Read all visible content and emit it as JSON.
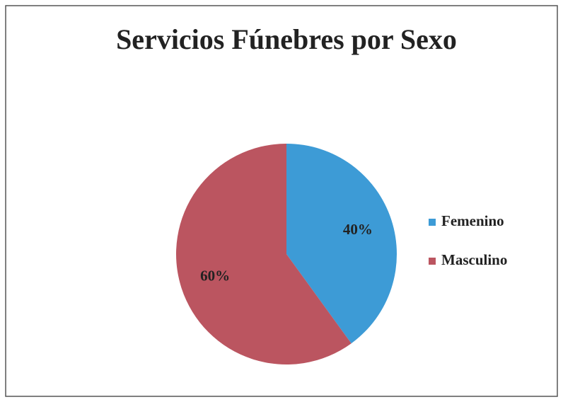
{
  "chart_data": {
    "type": "pie",
    "title": "Servicios Fúnebres por Sexo",
    "categories": [
      "Femenino",
      "Masculino"
    ],
    "values": [
      40,
      60
    ],
    "value_labels": [
      "40%",
      "60%"
    ],
    "colors": [
      "#3d9bd6",
      "#bb5560"
    ],
    "legend": "right"
  }
}
